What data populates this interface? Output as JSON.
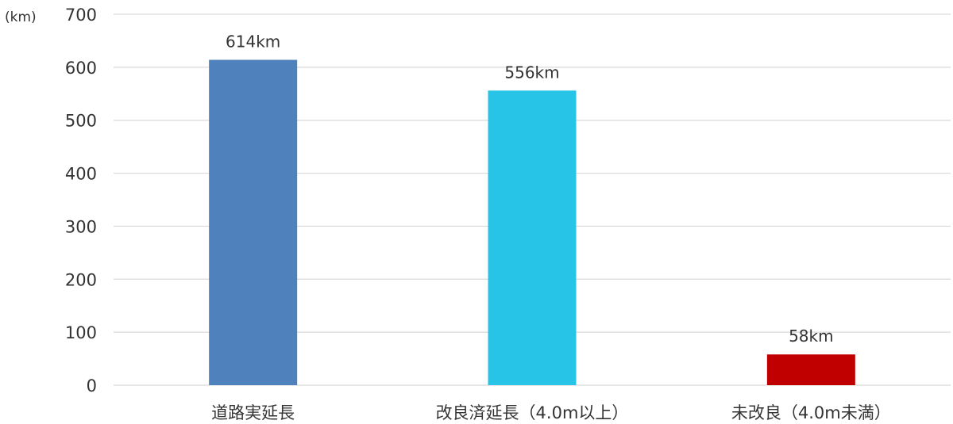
{
  "chart_data": {
    "type": "bar",
    "ylabel": "(km)",
    "categories": [
      "道路実延長",
      "改良済延長（4.0m以上）",
      "未改良（4.0m未満）"
    ],
    "values": [
      614,
      556,
      58
    ],
    "data_labels": [
      "614km",
      "556km",
      "58km"
    ],
    "colors": [
      "#4f81bd",
      "#27c4e8",
      "#c00000"
    ],
    "ylim": [
      0,
      700
    ],
    "yticks": [
      0,
      100,
      200,
      300,
      400,
      500,
      600,
      700
    ],
    "grid": true,
    "legend": "none"
  }
}
